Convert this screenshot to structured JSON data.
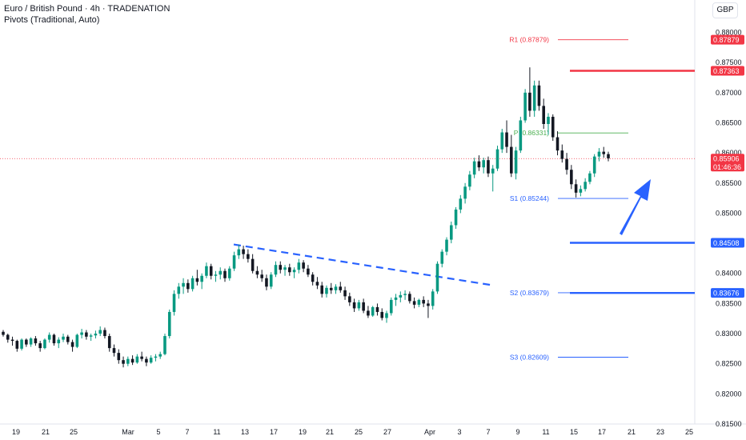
{
  "header": {
    "title": "Euro / British Pound · 4h · TRADENATION",
    "indicator": "Pivots (Traditional, Auto)",
    "currency": "GBP"
  },
  "colors": {
    "up": "#089981",
    "down": "#131722",
    "resistance": "#f23645",
    "support": "#2962ff",
    "pivot": "#4caf50",
    "last_price": "#f23645",
    "trendline": "#2962ff",
    "arrow": "#2962ff"
  },
  "chart_data": {
    "type": "candlestick",
    "symbol": "EURGBP",
    "timeframe": "4h",
    "y_range": [
      0.815,
      0.881
    ],
    "y_ticks": [
      "0.88000",
      "0.87500",
      "0.87000",
      "0.86500",
      "0.86000",
      "0.85500",
      "0.85000",
      "0.84500",
      "0.84000",
      "0.83500",
      "0.83000",
      "0.82500",
      "0.82000",
      "0.81500"
    ],
    "x_ticks": [
      "19",
      "21",
      "25",
      "Mar",
      "5",
      "7",
      "11",
      "13",
      "17",
      "19",
      "21",
      "25",
      "27",
      "Apr",
      "3",
      "7",
      "9",
      "11",
      "15",
      "17",
      "21",
      "23",
      "25"
    ],
    "pivots": [
      {
        "id": "r1",
        "label": "R1 (0.87879)",
        "value": 0.87879,
        "tag": "0.87879",
        "kind": "resistance"
      },
      {
        "id": "p",
        "label": "P (0.86331)",
        "value": 0.86331,
        "tag": "",
        "kind": "pivot"
      },
      {
        "id": "s1",
        "label": "S1 (0.85244)",
        "value": 0.85244,
        "tag": "",
        "kind": "support"
      },
      {
        "id": "s2",
        "label": "S2 (0.83679)",
        "value": 0.83679,
        "tag": "",
        "kind": "support"
      },
      {
        "id": "s3",
        "label": "S3 (0.82609)",
        "value": 0.82609,
        "tag": "",
        "kind": "support"
      }
    ],
    "horizontal_levels": [
      {
        "id": "res-line",
        "value": 0.87363,
        "tag": "0.87363",
        "kind": "resistance"
      },
      {
        "id": "sup-line-1",
        "value": 0.84508,
        "tag": "0.84508",
        "kind": "support"
      },
      {
        "id": "sup-line-2",
        "value": 0.83676,
        "tag": "0.83676",
        "kind": "support"
      }
    ],
    "last_price": {
      "value": 0.85906,
      "tag": "0.85906",
      "countdown": "01:46:36"
    },
    "trendline": {
      "from_x": "11",
      "from_y": 0.8448,
      "to_x": "7",
      "to_y": 0.838
    },
    "arrow": {
      "direction": "up"
    },
    "candles": [
      [
        0.8303,
        0.8306,
        0.8295,
        0.8298
      ],
      [
        0.8298,
        0.83,
        0.8285,
        0.829
      ],
      [
        0.829,
        0.8295,
        0.828,
        0.8288
      ],
      [
        0.8288,
        0.829,
        0.827,
        0.8275
      ],
      [
        0.8275,
        0.8292,
        0.8272,
        0.829
      ],
      [
        0.829,
        0.8292,
        0.8278,
        0.8282
      ],
      [
        0.8282,
        0.8294,
        0.8278,
        0.8292
      ],
      [
        0.8292,
        0.8296,
        0.828,
        0.8284
      ],
      [
        0.8284,
        0.8288,
        0.827,
        0.8276
      ],
      [
        0.8276,
        0.8292,
        0.8274,
        0.829
      ],
      [
        0.829,
        0.8302,
        0.8285,
        0.8298
      ],
      [
        0.8298,
        0.83,
        0.828,
        0.8284
      ],
      [
        0.8284,
        0.8294,
        0.8276,
        0.829
      ],
      [
        0.829,
        0.83,
        0.8286,
        0.8295
      ],
      [
        0.8295,
        0.8298,
        0.8282,
        0.8286
      ],
      [
        0.8286,
        0.829,
        0.827,
        0.8278
      ],
      [
        0.8278,
        0.83,
        0.8276,
        0.8298
      ],
      [
        0.8298,
        0.8308,
        0.8292,
        0.8302
      ],
      [
        0.8302,
        0.8306,
        0.829,
        0.8295
      ],
      [
        0.8295,
        0.83,
        0.8288,
        0.8297
      ],
      [
        0.8297,
        0.8305,
        0.8292,
        0.83
      ],
      [
        0.83,
        0.8312,
        0.8296,
        0.8306
      ],
      [
        0.8306,
        0.831,
        0.8292,
        0.8296
      ],
      [
        0.8296,
        0.83,
        0.827,
        0.8276
      ],
      [
        0.8276,
        0.8282,
        0.8262,
        0.8268
      ],
      [
        0.8268,
        0.8274,
        0.825,
        0.8256
      ],
      [
        0.8256,
        0.8262,
        0.8244,
        0.825
      ],
      [
        0.825,
        0.8262,
        0.8246,
        0.8258
      ],
      [
        0.8258,
        0.8264,
        0.8248,
        0.8252
      ],
      [
        0.8252,
        0.8266,
        0.825,
        0.8262
      ],
      [
        0.8262,
        0.827,
        0.8254,
        0.8258
      ],
      [
        0.8258,
        0.8262,
        0.8246,
        0.8252
      ],
      [
        0.8252,
        0.8264,
        0.825,
        0.826
      ],
      [
        0.826,
        0.8266,
        0.8254,
        0.8262
      ],
      [
        0.8262,
        0.827,
        0.8258,
        0.8266
      ],
      [
        0.8266,
        0.83,
        0.8264,
        0.8296
      ],
      [
        0.8296,
        0.834,
        0.8292,
        0.8336
      ],
      [
        0.8336,
        0.8372,
        0.833,
        0.8366
      ],
      [
        0.8366,
        0.8384,
        0.8358,
        0.8378
      ],
      [
        0.8378,
        0.8392,
        0.8366,
        0.8384
      ],
      [
        0.8384,
        0.839,
        0.8368,
        0.8374
      ],
      [
        0.8374,
        0.8396,
        0.837,
        0.8392
      ],
      [
        0.8392,
        0.8406,
        0.838,
        0.8386
      ],
      [
        0.8386,
        0.84,
        0.8374,
        0.8396
      ],
      [
        0.8396,
        0.8418,
        0.8392,
        0.8412
      ],
      [
        0.8412,
        0.8416,
        0.839,
        0.8396
      ],
      [
        0.8396,
        0.8404,
        0.8386,
        0.8398
      ],
      [
        0.8398,
        0.841,
        0.839,
        0.8404
      ],
      [
        0.8404,
        0.8408,
        0.8386,
        0.8392
      ],
      [
        0.8392,
        0.8412,
        0.8388,
        0.8408
      ],
      [
        0.8408,
        0.8436,
        0.8404,
        0.843
      ],
      [
        0.843,
        0.8448,
        0.8424,
        0.844
      ],
      [
        0.844,
        0.8446,
        0.8424,
        0.8432
      ],
      [
        0.8432,
        0.844,
        0.8418,
        0.8424
      ],
      [
        0.8424,
        0.8432,
        0.84,
        0.8404
      ],
      [
        0.8404,
        0.8412,
        0.8392,
        0.8398
      ],
      [
        0.8398,
        0.8406,
        0.8386,
        0.8392
      ],
      [
        0.8392,
        0.8398,
        0.8372,
        0.8378
      ],
      [
        0.8378,
        0.8402,
        0.8374,
        0.8398
      ],
      [
        0.8398,
        0.842,
        0.8394,
        0.8414
      ],
      [
        0.8414,
        0.842,
        0.84,
        0.8406
      ],
      [
        0.8406,
        0.8414,
        0.8396,
        0.841
      ],
      [
        0.841,
        0.8416,
        0.8396,
        0.8402
      ],
      [
        0.8402,
        0.841,
        0.8392,
        0.8406
      ],
      [
        0.8406,
        0.8424,
        0.84,
        0.8418
      ],
      [
        0.8418,
        0.8422,
        0.8402,
        0.8408
      ],
      [
        0.8408,
        0.8414,
        0.8394,
        0.8398
      ],
      [
        0.8398,
        0.8402,
        0.838,
        0.8386
      ],
      [
        0.8386,
        0.8394,
        0.8374,
        0.838
      ],
      [
        0.838,
        0.8386,
        0.836,
        0.8366
      ],
      [
        0.8366,
        0.838,
        0.836,
        0.8376
      ],
      [
        0.8376,
        0.8384,
        0.8366,
        0.8372
      ],
      [
        0.8372,
        0.8382,
        0.8366,
        0.8378
      ],
      [
        0.8378,
        0.8386,
        0.8368,
        0.8372
      ],
      [
        0.8372,
        0.8378,
        0.8356,
        0.8362
      ],
      [
        0.8362,
        0.8368,
        0.8346,
        0.8352
      ],
      [
        0.8352,
        0.8358,
        0.8336,
        0.8342
      ],
      [
        0.8342,
        0.8356,
        0.8338,
        0.8352
      ],
      [
        0.8352,
        0.8358,
        0.8334,
        0.8338
      ],
      [
        0.8338,
        0.8346,
        0.8326,
        0.833
      ],
      [
        0.833,
        0.8346,
        0.8328,
        0.8344
      ],
      [
        0.8344,
        0.835,
        0.833,
        0.8336
      ],
      [
        0.8336,
        0.8342,
        0.8322,
        0.8326
      ],
      [
        0.8326,
        0.8338,
        0.8318,
        0.8334
      ],
      [
        0.8334,
        0.836,
        0.833,
        0.8356
      ],
      [
        0.8356,
        0.8366,
        0.8346,
        0.836
      ],
      [
        0.836,
        0.837,
        0.8352,
        0.8364
      ],
      [
        0.8364,
        0.8372,
        0.8356,
        0.8366
      ],
      [
        0.8366,
        0.837,
        0.835,
        0.8354
      ],
      [
        0.8354,
        0.836,
        0.8342,
        0.8348
      ],
      [
        0.8348,
        0.8358,
        0.8344,
        0.8356
      ],
      [
        0.8356,
        0.8362,
        0.8344,
        0.835
      ],
      [
        0.835,
        0.8356,
        0.8326,
        0.8346
      ],
      [
        0.8346,
        0.8374,
        0.834,
        0.837
      ],
      [
        0.837,
        0.842,
        0.8366,
        0.8416
      ],
      [
        0.8416,
        0.844,
        0.841,
        0.8436
      ],
      [
        0.8436,
        0.846,
        0.843,
        0.8456
      ],
      [
        0.8456,
        0.8486,
        0.845,
        0.848
      ],
      [
        0.848,
        0.851,
        0.8474,
        0.8506
      ],
      [
        0.8506,
        0.853,
        0.85,
        0.8524
      ],
      [
        0.8524,
        0.855,
        0.8516,
        0.8544
      ],
      [
        0.8544,
        0.857,
        0.8538,
        0.8564
      ],
      [
        0.8564,
        0.8592,
        0.8558,
        0.8586
      ],
      [
        0.8586,
        0.8596,
        0.857,
        0.8576
      ],
      [
        0.8576,
        0.8592,
        0.8566,
        0.8588
      ],
      [
        0.8588,
        0.8594,
        0.856,
        0.8566
      ],
      [
        0.8566,
        0.858,
        0.8536,
        0.8574
      ],
      [
        0.8574,
        0.8612,
        0.857,
        0.8606
      ],
      [
        0.8606,
        0.864,
        0.86,
        0.8634
      ],
      [
        0.8634,
        0.8654,
        0.86,
        0.861
      ],
      [
        0.861,
        0.863,
        0.856,
        0.8566
      ],
      [
        0.8566,
        0.861,
        0.8556,
        0.8604
      ],
      [
        0.8604,
        0.866,
        0.86,
        0.8654
      ],
      [
        0.8654,
        0.8706,
        0.865,
        0.87
      ],
      [
        0.87,
        0.8742,
        0.866,
        0.867
      ],
      [
        0.867,
        0.872,
        0.866,
        0.8712
      ],
      [
        0.8712,
        0.872,
        0.867,
        0.8678
      ],
      [
        0.8678,
        0.869,
        0.864,
        0.8648
      ],
      [
        0.8648,
        0.8666,
        0.863,
        0.866
      ],
      [
        0.866,
        0.8664,
        0.862,
        0.8626
      ],
      [
        0.8626,
        0.8636,
        0.8596,
        0.8604
      ],
      [
        0.8604,
        0.8614,
        0.8584,
        0.859
      ],
      [
        0.859,
        0.86,
        0.8564,
        0.8572
      ],
      [
        0.8572,
        0.858,
        0.854,
        0.8548
      ],
      [
        0.8548,
        0.8556,
        0.8526,
        0.8534
      ],
      [
        0.8534,
        0.8546,
        0.8528,
        0.854
      ],
      [
        0.854,
        0.8558,
        0.8536,
        0.8552
      ],
      [
        0.8552,
        0.857,
        0.8548,
        0.8566
      ],
      [
        0.8566,
        0.8598,
        0.856,
        0.8594
      ],
      [
        0.8594,
        0.8608,
        0.8586,
        0.8602
      ],
      [
        0.8602,
        0.861,
        0.8592,
        0.8598
      ],
      [
        0.8598,
        0.8602,
        0.8586,
        0.8591
      ]
    ]
  }
}
